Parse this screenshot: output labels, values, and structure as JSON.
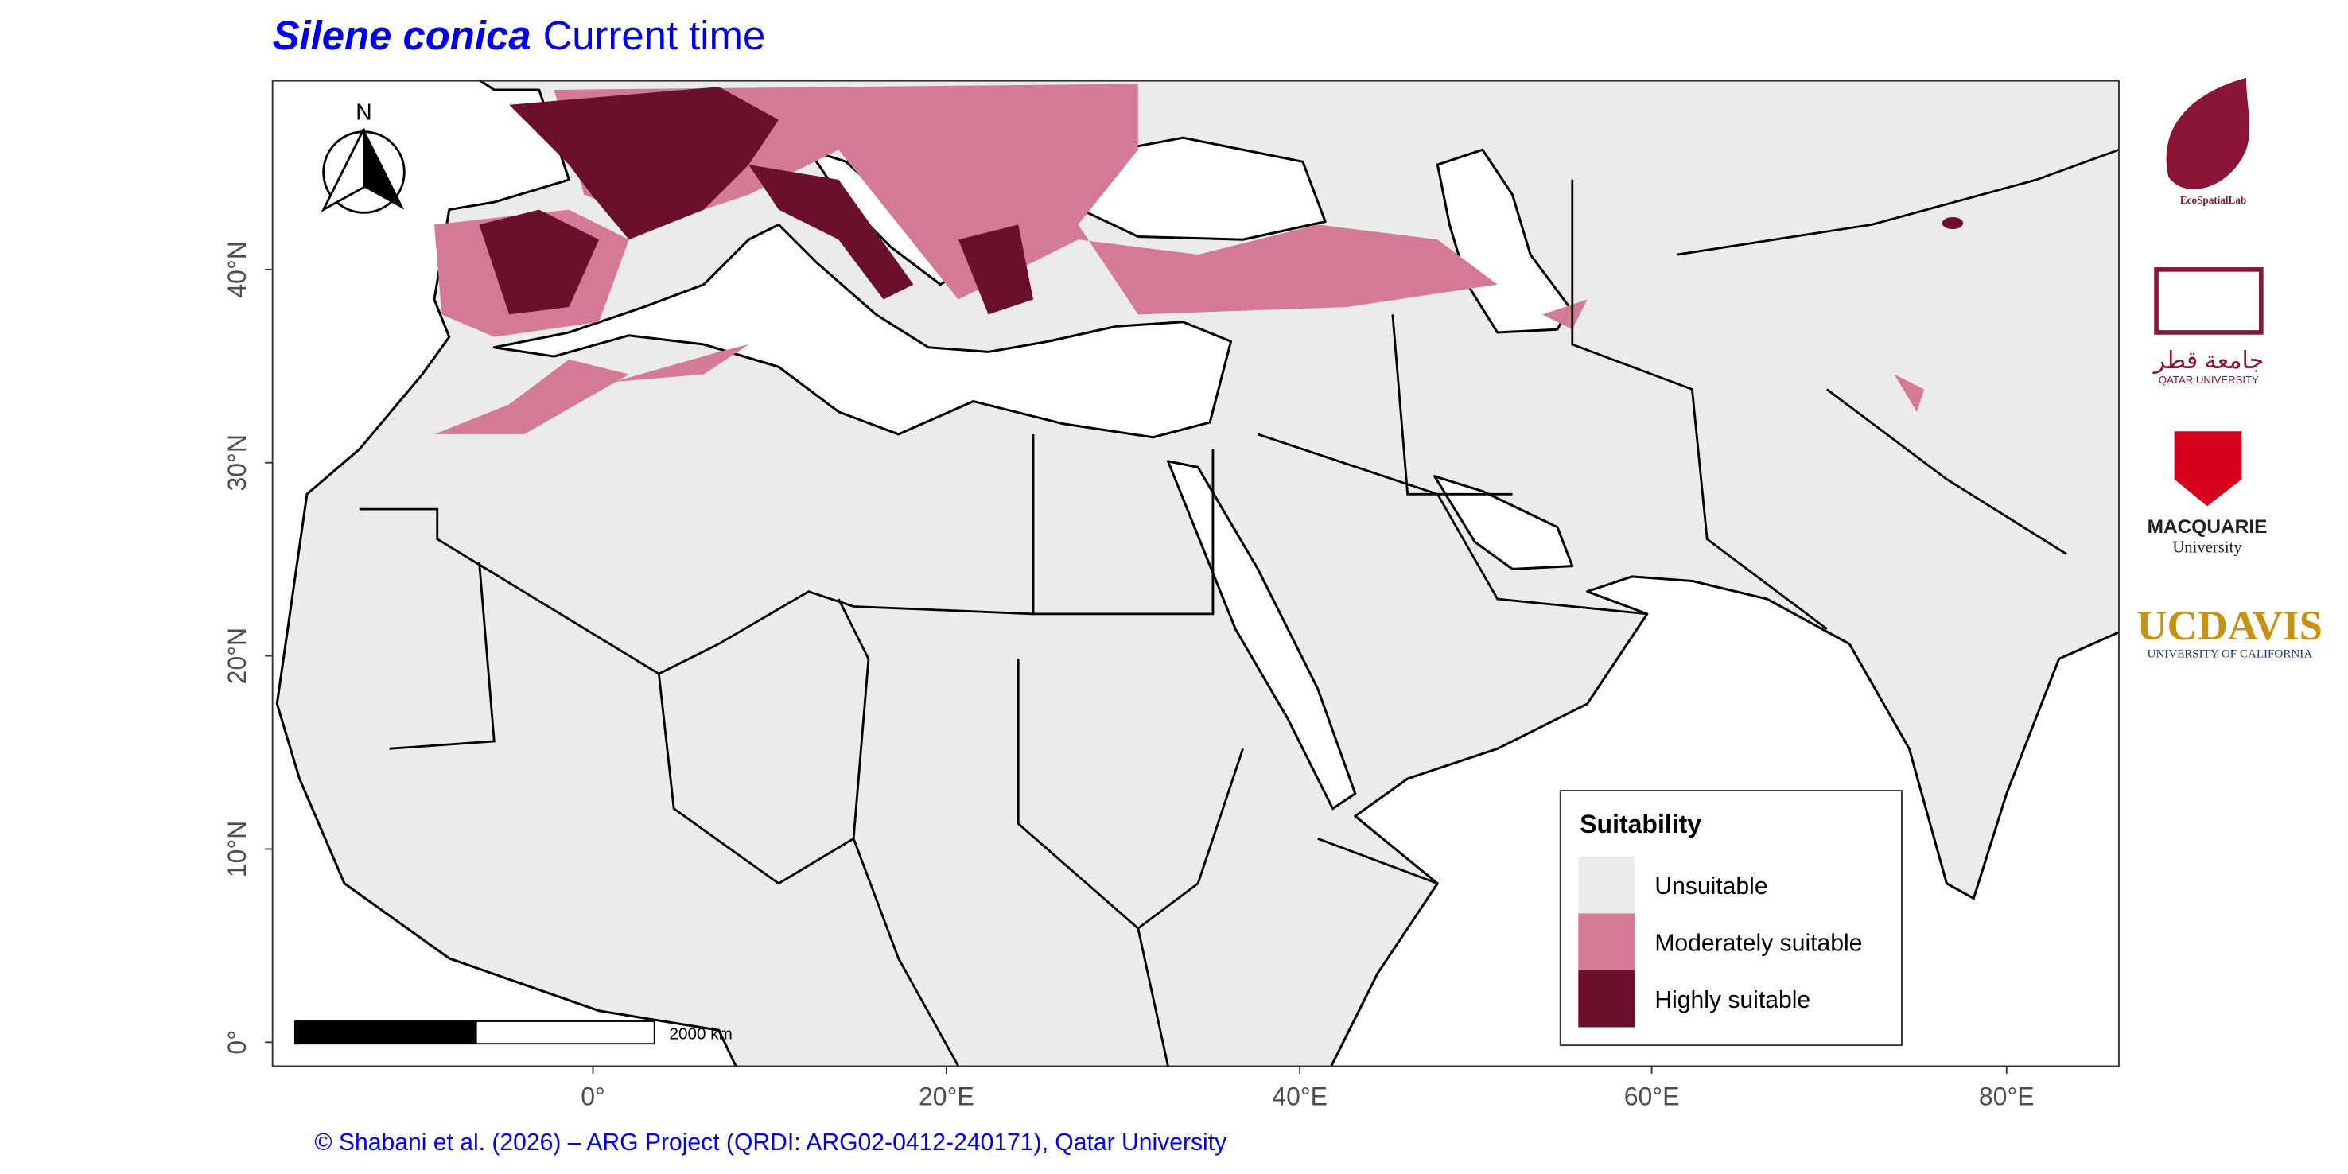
{
  "title": {
    "species": "Silene conica",
    "period": "Current time"
  },
  "map": {
    "xticks": [
      "0°",
      "20°E",
      "40°E",
      "60°E",
      "80°E"
    ],
    "yticks": [
      "0°",
      "10°N",
      "20°N",
      "30°N",
      "40°N"
    ],
    "north_label": "N",
    "scale_bar": "2000 km"
  },
  "legend": {
    "title": "Suitability",
    "items": [
      {
        "label": "Unsuitable",
        "color": "#ebebeb"
      },
      {
        "label": "Moderately suitable",
        "color": "#d47a96"
      },
      {
        "label": "Highly suitable",
        "color": "#6b0f2a"
      }
    ]
  },
  "logos": {
    "ecospatial": "EcoSpatialLab",
    "qu_arabic": "جامعة قطر",
    "qu": "QATAR UNIVERSITY",
    "mq": "MACQUARIE",
    "mq_sub": "University",
    "uc": "UC",
    "davis": "DAVIS",
    "uc_sub": "UNIVERSITY OF CALIFORNIA"
  },
  "credit": "© Shabani et al. (2026) – ARG Project (QRDI: ARG02-0412-240171), Qatar University"
}
